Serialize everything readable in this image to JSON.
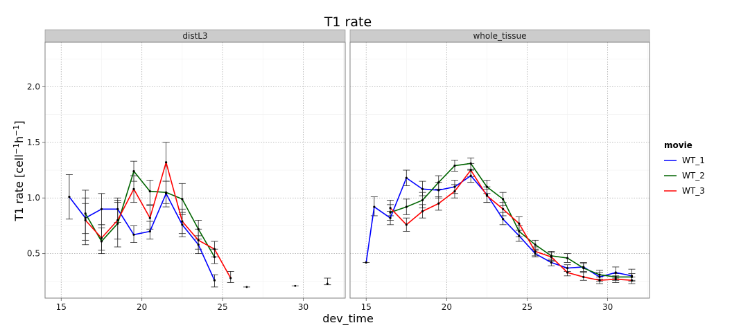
{
  "chart_data": {
    "type": "line",
    "title": "T1 rate",
    "xlabel": "dev_time",
    "ylabel": "T1 rate [cell⁻¹h⁻¹]",
    "xlim": [
      14,
      32.6
    ],
    "ylim": [
      0.1,
      2.4
    ],
    "x_ticks": [
      15,
      20,
      25,
      30
    ],
    "y_ticks": [
      0.5,
      1.0,
      1.5,
      2.0
    ],
    "y_tick_labels": [
      "0.5",
      "1.0",
      "1.5",
      "2.0"
    ],
    "grid": true,
    "legend": {
      "title": "movie",
      "position": "right",
      "entries": [
        {
          "name": "WT_1",
          "color": "#0000ff"
        },
        {
          "name": "WT_2",
          "color": "#006400"
        },
        {
          "name": "WT_3",
          "color": "#ff0000"
        }
      ]
    },
    "panels": [
      {
        "strip": "distL3",
        "series": [
          {
            "name": "WT_1",
            "color": "#0000ff",
            "x": [
              15.5,
              16.5,
              17.5,
              18.5,
              19.5,
              20.5,
              21.5,
              22.5,
              23.5,
              24.5
            ],
            "y": [
              1.01,
              0.82,
              0.9,
              0.9,
              0.67,
              0.7,
              1.04,
              0.76,
              0.58,
              0.26
            ],
            "err": [
              [
                0.81,
                1.21
              ],
              [
                0.68,
                0.95
              ],
              [
                0.76,
                1.04
              ],
              [
                0.78,
                1.0
              ],
              [
                0.6,
                0.75
              ],
              [
                0.63,
                0.79
              ],
              [
                0.92,
                1.15
              ],
              [
                0.65,
                0.87
              ],
              [
                0.5,
                0.66
              ],
              [
                0.2,
                0.31
              ]
            ]
          },
          {
            "name": "WT_2",
            "color": "#006400",
            "x": [
              16.5,
              17.5,
              18.5,
              19.5,
              20.5,
              21.5,
              22.5,
              23.5,
              24.5
            ],
            "y": [
              0.86,
              0.61,
              0.77,
              1.24,
              1.06,
              1.05,
              0.99,
              0.72,
              0.47
            ],
            "err": [
              [
                0.62,
                1.07
              ],
              [
                0.5,
                0.73
              ],
              [
                0.56,
                0.98
              ],
              [
                1.15,
                1.33
              ],
              [
                0.94,
                1.16
              ],
              [
                0.95,
                1.15
              ],
              [
                0.85,
                1.13
              ],
              [
                0.63,
                0.8
              ],
              [
                0.41,
                0.54
              ]
            ]
          },
          {
            "name": "WT_3",
            "color": "#ff0000",
            "x": [
              16.5,
              17.5,
              18.5,
              19.5,
              20.5,
              21.5,
              22.5,
              23.5,
              24.5,
              25.5
            ],
            "y": [
              0.8,
              0.64,
              0.8,
              1.08,
              0.82,
              1.32,
              0.79,
              0.62,
              0.54,
              0.28
            ],
            "err": [
              [
                0.58,
                1.0
              ],
              [
                0.53,
                0.76
              ],
              [
                0.63,
                0.96
              ],
              [
                0.96,
                1.2
              ],
              [
                0.72,
                0.93
              ],
              [
                1.15,
                1.5
              ],
              [
                0.68,
                0.9
              ],
              [
                0.54,
                0.72
              ],
              [
                0.47,
                0.61
              ],
              [
                0.24,
                0.34
              ]
            ]
          }
        ],
        "isolated_points": [
          {
            "x": 26.5,
            "y": 0.2,
            "err": [
              0.2,
              0.2
            ]
          },
          {
            "x": 29.5,
            "y": 0.21,
            "err": [
              0.21,
              0.21
            ]
          },
          {
            "x": 31.5,
            "y": 0.23,
            "err": [
              0.22,
              0.28
            ]
          }
        ]
      },
      {
        "strip": "whole_tissue",
        "series": [
          {
            "name": "WT_1",
            "color": "#0000ff",
            "x": [
              15.0,
              15.5,
              16.5,
              17.5,
              18.5,
              19.5,
              20.5,
              21.5,
              22.5,
              23.5,
              24.5,
              25.5,
              26.5,
              27.5,
              28.5,
              29.5,
              30.5,
              31.5
            ],
            "y": [
              0.42,
              0.92,
              0.82,
              1.18,
              1.08,
              1.07,
              1.1,
              1.2,
              1.03,
              0.81,
              0.66,
              0.5,
              0.42,
              0.37,
              0.38,
              0.29,
              0.33,
              0.3
            ],
            "err": [
              [
                0.42,
                0.42
              ],
              [
                0.84,
                1.01
              ],
              [
                0.76,
                0.88
              ],
              [
                1.11,
                1.25
              ],
              [
                1.02,
                1.15
              ],
              [
                1.0,
                1.14
              ],
              [
                1.04,
                1.16
              ],
              [
                1.14,
                1.26
              ],
              [
                0.96,
                1.1
              ],
              [
                0.76,
                0.87
              ],
              [
                0.61,
                0.71
              ],
              [
                0.47,
                0.53
              ],
              [
                0.39,
                0.45
              ],
              [
                0.34,
                0.4
              ],
              [
                0.34,
                0.42
              ],
              [
                0.25,
                0.33
              ],
              [
                0.28,
                0.38
              ],
              [
                0.25,
                0.36
              ]
            ]
          },
          {
            "name": "WT_2",
            "color": "#006400",
            "x": [
              16.5,
              17.5,
              18.5,
              19.5,
              20.5,
              21.5,
              22.5,
              23.5,
              24.5,
              25.5,
              26.5,
              27.5,
              28.5,
              29.5,
              30.5,
              31.5
            ],
            "y": [
              0.87,
              0.92,
              0.98,
              1.14,
              1.29,
              1.31,
              1.1,
              0.99,
              0.7,
              0.58,
              0.48,
              0.46,
              0.37,
              0.31,
              0.29,
              0.29
            ],
            "err": [
              [
                0.8,
                0.94
              ],
              [
                0.85,
                0.99
              ],
              [
                0.91,
                1.05
              ],
              [
                1.08,
                1.2
              ],
              [
                1.24,
                1.34
              ],
              [
                1.25,
                1.36
              ],
              [
                1.04,
                1.16
              ],
              [
                0.93,
                1.05
              ],
              [
                0.65,
                0.75
              ],
              [
                0.54,
                0.62
              ],
              [
                0.44,
                0.52
              ],
              [
                0.42,
                0.5
              ],
              [
                0.33,
                0.41
              ],
              [
                0.27,
                0.35
              ],
              [
                0.26,
                0.32
              ],
              [
                0.26,
                0.32
              ]
            ]
          },
          {
            "name": "WT_3",
            "color": "#ff0000",
            "x": [
              16.5,
              17.5,
              18.5,
              19.5,
              20.5,
              21.5,
              22.5,
              23.5,
              24.5,
              25.5,
              26.5,
              27.5,
              28.5,
              29.5,
              30.5,
              31.5
            ],
            "y": [
              0.91,
              0.76,
              0.88,
              0.95,
              1.06,
              1.25,
              1.02,
              0.9,
              0.77,
              0.52,
              0.47,
              0.33,
              0.29,
              0.26,
              0.27,
              0.26
            ],
            "err": [
              [
                0.84,
                0.98
              ],
              [
                0.7,
                0.82
              ],
              [
                0.82,
                0.94
              ],
              [
                0.89,
                1.01
              ],
              [
                1.0,
                1.12
              ],
              [
                1.19,
                1.31
              ],
              [
                0.96,
                1.08
              ],
              [
                0.84,
                0.96
              ],
              [
                0.71,
                0.83
              ],
              [
                0.48,
                0.56
              ],
              [
                0.43,
                0.51
              ],
              [
                0.3,
                0.37
              ],
              [
                0.26,
                0.33
              ],
              [
                0.23,
                0.29
              ],
              [
                0.24,
                0.3
              ],
              [
                0.23,
                0.29
              ]
            ]
          }
        ],
        "isolated_points": []
      }
    ]
  }
}
